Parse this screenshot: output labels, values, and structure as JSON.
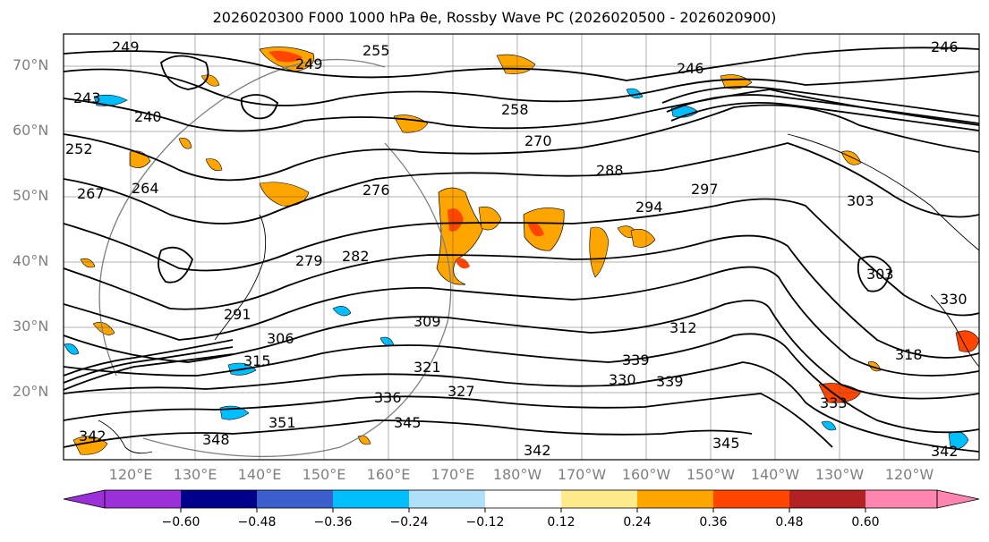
{
  "title": "2026020300 F000 1000 hPa θe, Rossby Wave PC (2026020500 - 2026020900)",
  "map": {
    "lat_labels": [
      "70°N",
      "60°N",
      "50°N",
      "40°N",
      "30°N",
      "20°N"
    ],
    "lon_labels": [
      "120°E",
      "130°E",
      "140°E",
      "150°E",
      "160°E",
      "170°E",
      "180°W",
      "170°W",
      "160°W",
      "150°W",
      "140°W",
      "130°W",
      "120°W"
    ],
    "contour_labels": [
      "249",
      "255",
      "249",
      "243",
      "240",
      "252",
      "267",
      "264",
      "276",
      "279",
      "282",
      "291",
      "306",
      "315",
      "321",
      "327",
      "330",
      "336",
      "339",
      "342",
      "345",
      "348",
      "351",
      "345",
      "342",
      "309",
      "294",
      "297",
      "288",
      "270",
      "258",
      "246",
      "303",
      "303",
      "318",
      "312",
      "333",
      "342",
      "246",
      "330",
      "339"
    ]
  },
  "colorbar": {
    "ticks": [
      "−0.60",
      "−0.48",
      "−0.36",
      "−0.24",
      "−0.12",
      "0.12",
      "0.24",
      "0.36",
      "0.48",
      "0.60"
    ],
    "colors": [
      "#9b30d9",
      "#00008b",
      "#3a5fcd",
      "#00bfff",
      "#b0e0f8",
      "#ffffff",
      "#ffeb8c",
      "#ffa500",
      "#ff4500",
      "#b22222",
      "#ff85b0"
    ]
  }
}
